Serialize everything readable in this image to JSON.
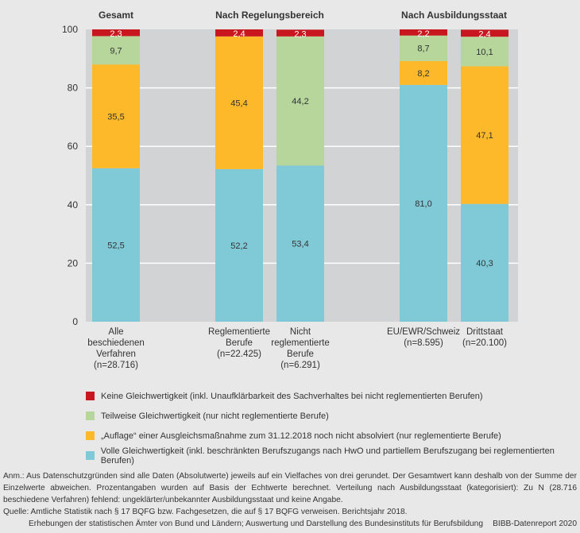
{
  "chart_data": {
    "type": "bar",
    "stacked": true,
    "title": "",
    "xlabel": "",
    "ylabel": "",
    "ylim": [
      0,
      100
    ],
    "yticks": [
      0,
      20,
      40,
      60,
      80,
      100
    ],
    "grid": true,
    "legend_position": "bottom",
    "groups": [
      {
        "title": "Gesamt",
        "categories": [
          0
        ]
      },
      {
        "title": "Nach Regelungsbereich",
        "categories": [
          1,
          2
        ]
      },
      {
        "title": "Nach Ausbildungsstaat",
        "categories": [
          3,
          4
        ]
      }
    ],
    "categories": [
      {
        "lines": [
          "Alle",
          "beschiedenen",
          "Verfahren",
          "(n=28.716)"
        ]
      },
      {
        "lines": [
          "Reglementierte",
          "Berufe",
          "(n=22.425)"
        ]
      },
      {
        "lines": [
          "Nicht",
          "reglementierte",
          "Berufe",
          "(n=6.291)"
        ]
      },
      {
        "lines": [
          "EU/EWR/Schweiz",
          "(n=8.595)"
        ]
      },
      {
        "lines": [
          "Drittstaat",
          "(n=20.100)"
        ]
      }
    ],
    "series": [
      {
        "key": "volle",
        "name": "Volle Gleichwertigkeit (inkl. beschränkten Berufszugangs nach HwO und partiellem Berufszugang bei reglementierten Berufen)",
        "color": "#80cad8",
        "values": [
          52.5,
          52.2,
          53.4,
          81.0,
          40.3
        ],
        "labels": [
          "52,5",
          "52,2",
          "53,4",
          "81,0",
          "40,3"
        ]
      },
      {
        "key": "auflage",
        "name": "„Auflage“ einer Ausgleichsmaßnahme zum 31.12.2018 noch nicht absolviert (nur reglementierte Berufe)",
        "color": "#fdb92a",
        "values": [
          35.5,
          45.4,
          0,
          8.2,
          47.1
        ],
        "labels": [
          "35,5",
          "45,4",
          "",
          "8,2",
          "47,1"
        ]
      },
      {
        "key": "teilweise",
        "name": "Teilweise Gleichwertigkeit (nur nicht reglementierte Berufe)",
        "color": "#b6d69c",
        "values": [
          9.7,
          0,
          44.2,
          8.7,
          10.1
        ],
        "labels": [
          "9,7",
          "",
          "44,2",
          "8,7",
          "10,1"
        ]
      },
      {
        "key": "keine",
        "name": "Keine Gleichwertigkeit (inkl. Unaufklärbarkeit des Sachverhaltes bei nicht reglementierten Berufen)",
        "color": "#c8171e",
        "values": [
          2.3,
          2.4,
          2.3,
          2.2,
          2.4
        ],
        "labels": [
          "2,3",
          "2,4",
          "2,3",
          "2,2",
          "2,4"
        ]
      }
    ],
    "legend_order": [
      "keine",
      "teilweise",
      "auflage",
      "volle"
    ]
  },
  "notes": {
    "anm": "Anm.: Aus Datenschutzgründen sind alle Daten (Absolutwerte) jeweils auf ein Vielfaches von drei gerundet. Der Gesamtwert kann deshalb von der Summe der Einzelwerte abweichen. Prozentangaben wurden auf Basis der Echtwerte berechnet. Verteilung nach Ausbildungsstaat (kategorisiert): Zu N (28.716 beschiedene Verfahren) fehlend: ungeklärter/unbekannter Ausbildungsstaat und keine Angabe.",
    "quelle_1": "Quelle: Amtliche Statistik nach § 17 BQFG bzw. Fachgesetzen, die auf § 17 BQFG verweisen. Berichtsjahr 2018.",
    "quelle_2": "Erhebungen der statistischen Ämter von Bund und Ländern; Auswertung und Darstellung des Bundesinstituts für Berufsbildung",
    "credit": "BIBB-Datenreport 2020"
  }
}
